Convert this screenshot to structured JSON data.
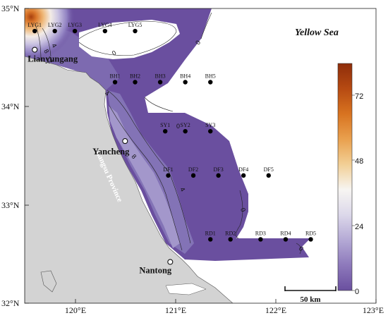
{
  "map": {
    "title": "Yellow Sea",
    "province": "Jiangsu Province",
    "x_ticks": [
      "120°E",
      "121°E",
      "122°E",
      "123°E"
    ],
    "y_ticks": [
      "35°N",
      "34°N",
      "33°N",
      "32°N"
    ],
    "lon_range": [
      119.5,
      123.0
    ],
    "lat_range": [
      32.0,
      35.0
    ],
    "scale_bar": "50 km",
    "cities": [
      {
        "name": "Lianyungang",
        "lon": 119.6,
        "lat": 34.58
      },
      {
        "name": "Yancheng",
        "lon": 120.5,
        "lat": 33.65
      },
      {
        "name": "Nantong",
        "lon": 120.95,
        "lat": 32.42
      }
    ],
    "stations": [
      {
        "id": "LYG1",
        "lon": 119.6,
        "lat": 34.77
      },
      {
        "id": "LYG2",
        "lon": 119.8,
        "lat": 34.77
      },
      {
        "id": "LYG3",
        "lon": 120.0,
        "lat": 34.77
      },
      {
        "id": "LYG4",
        "lon": 120.3,
        "lat": 34.77
      },
      {
        "id": "LYG5",
        "lon": 120.6,
        "lat": 34.77
      },
      {
        "id": "BH1",
        "lon": 120.4,
        "lat": 34.25
      },
      {
        "id": "BH2",
        "lon": 120.6,
        "lat": 34.25
      },
      {
        "id": "BH3",
        "lon": 120.85,
        "lat": 34.25
      },
      {
        "id": "BH4",
        "lon": 121.1,
        "lat": 34.25
      },
      {
        "id": "BH5",
        "lon": 121.35,
        "lat": 34.25
      },
      {
        "id": "SY1",
        "lon": 120.9,
        "lat": 33.75
      },
      {
        "id": "SY2",
        "lon": 121.1,
        "lat": 33.75
      },
      {
        "id": "SY3",
        "lon": 121.35,
        "lat": 33.75
      },
      {
        "id": "DF1",
        "lon": 120.93,
        "lat": 33.3
      },
      {
        "id": "DF2",
        "lon": 121.18,
        "lat": 33.3
      },
      {
        "id": "DF3",
        "lon": 121.43,
        "lat": 33.3
      },
      {
        "id": "DF4",
        "lon": 121.68,
        "lat": 33.3
      },
      {
        "id": "DF5",
        "lon": 121.93,
        "lat": 33.3
      },
      {
        "id": "RD1",
        "lon": 121.35,
        "lat": 32.65
      },
      {
        "id": "RD2",
        "lon": 121.55,
        "lat": 32.65
      },
      {
        "id": "RD3",
        "lon": 121.85,
        "lat": 32.65
      },
      {
        "id": "RD4",
        "lon": 122.1,
        "lat": 32.65
      },
      {
        "id": "RD5",
        "lon": 122.35,
        "lat": 32.65
      }
    ],
    "contour_labels": [
      "0",
      "0",
      "0",
      "0",
      "0",
      "4",
      "4",
      "4",
      "8",
      "8",
      "12"
    ],
    "colorbar": {
      "ticks": [
        "72",
        "48",
        "24",
        "0"
      ],
      "range": [
        0,
        84
      ],
      "colors": [
        "#6a4f9f",
        "#8d79bb",
        "#b4a9d5",
        "#dcd8ea",
        "#f7f5f2",
        "#f2cf95",
        "#e9a04e",
        "#d87320",
        "#b64a12",
        "#8e2d0a"
      ]
    },
    "colors": {
      "land": "#d3d3d3",
      "sea_low": "#6a4f9f",
      "sea_high": "#8e2d0a"
    }
  }
}
